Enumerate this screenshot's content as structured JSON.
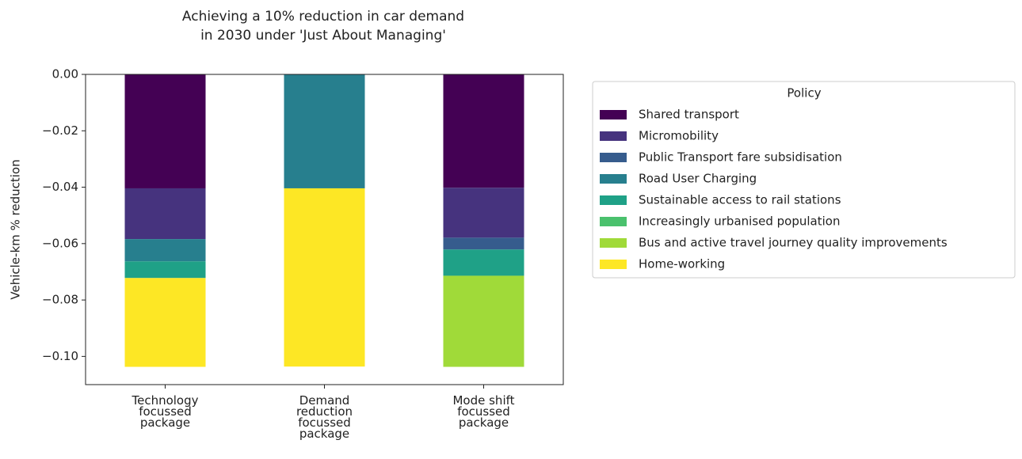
{
  "chart_data": {
    "type": "stacked_bar",
    "title": "Achieving a 10% reduction in car demand\nin 2030 under 'Just About Managing'",
    "y_label": "Vehicle-km % reduction",
    "categories": [
      "Technology\nfocussed\npackage",
      "Demand\nreduction\nfocussed\npackage",
      "Mode shift\nfocussed\npackage"
    ],
    "legend_title": "Policy",
    "legend_position": "outside right",
    "ylim": [
      -0.11,
      0
    ],
    "yticks": [
      {
        "value": 0,
        "label": "0.00"
      },
      {
        "value": -0.02,
        "label": "−0.02"
      },
      {
        "value": -0.04,
        "label": "−0.04"
      },
      {
        "value": -0.06,
        "label": "−0.06"
      },
      {
        "value": -0.08,
        "label": "−0.08"
      },
      {
        "value": -0.1,
        "label": "−0.10"
      }
    ],
    "series": [
      {
        "name": "Shared transport",
        "color": "#440154",
        "values": [
          -0.0404,
          0,
          -0.0402
        ]
      },
      {
        "name": "Micromobility",
        "color": "#46337e",
        "values": [
          -0.018,
          0,
          -0.0177
        ]
      },
      {
        "name": "Public Transport fare subsidisation",
        "color": "#365c8d",
        "values": [
          0,
          0,
          -0.0042
        ]
      },
      {
        "name": "Road User Charging",
        "color": "#277f8e",
        "values": [
          -0.0079,
          -0.0404,
          0
        ]
      },
      {
        "name": "Sustainable access to rail stations",
        "color": "#1fa187",
        "values": [
          -0.0059,
          0,
          -0.0093
        ]
      },
      {
        "name": "Increasingly urbanised population",
        "color": "#4ac16d",
        "values": [
          0,
          0,
          0
        ]
      },
      {
        "name": "Bus and active travel journey quality improvements",
        "color": "#a0da39",
        "values": [
          0,
          0,
          -0.0323
        ]
      },
      {
        "name": "Home-working",
        "color": "#fde725",
        "values": [
          -0.0315,
          -0.0632,
          0
        ]
      }
    ]
  }
}
